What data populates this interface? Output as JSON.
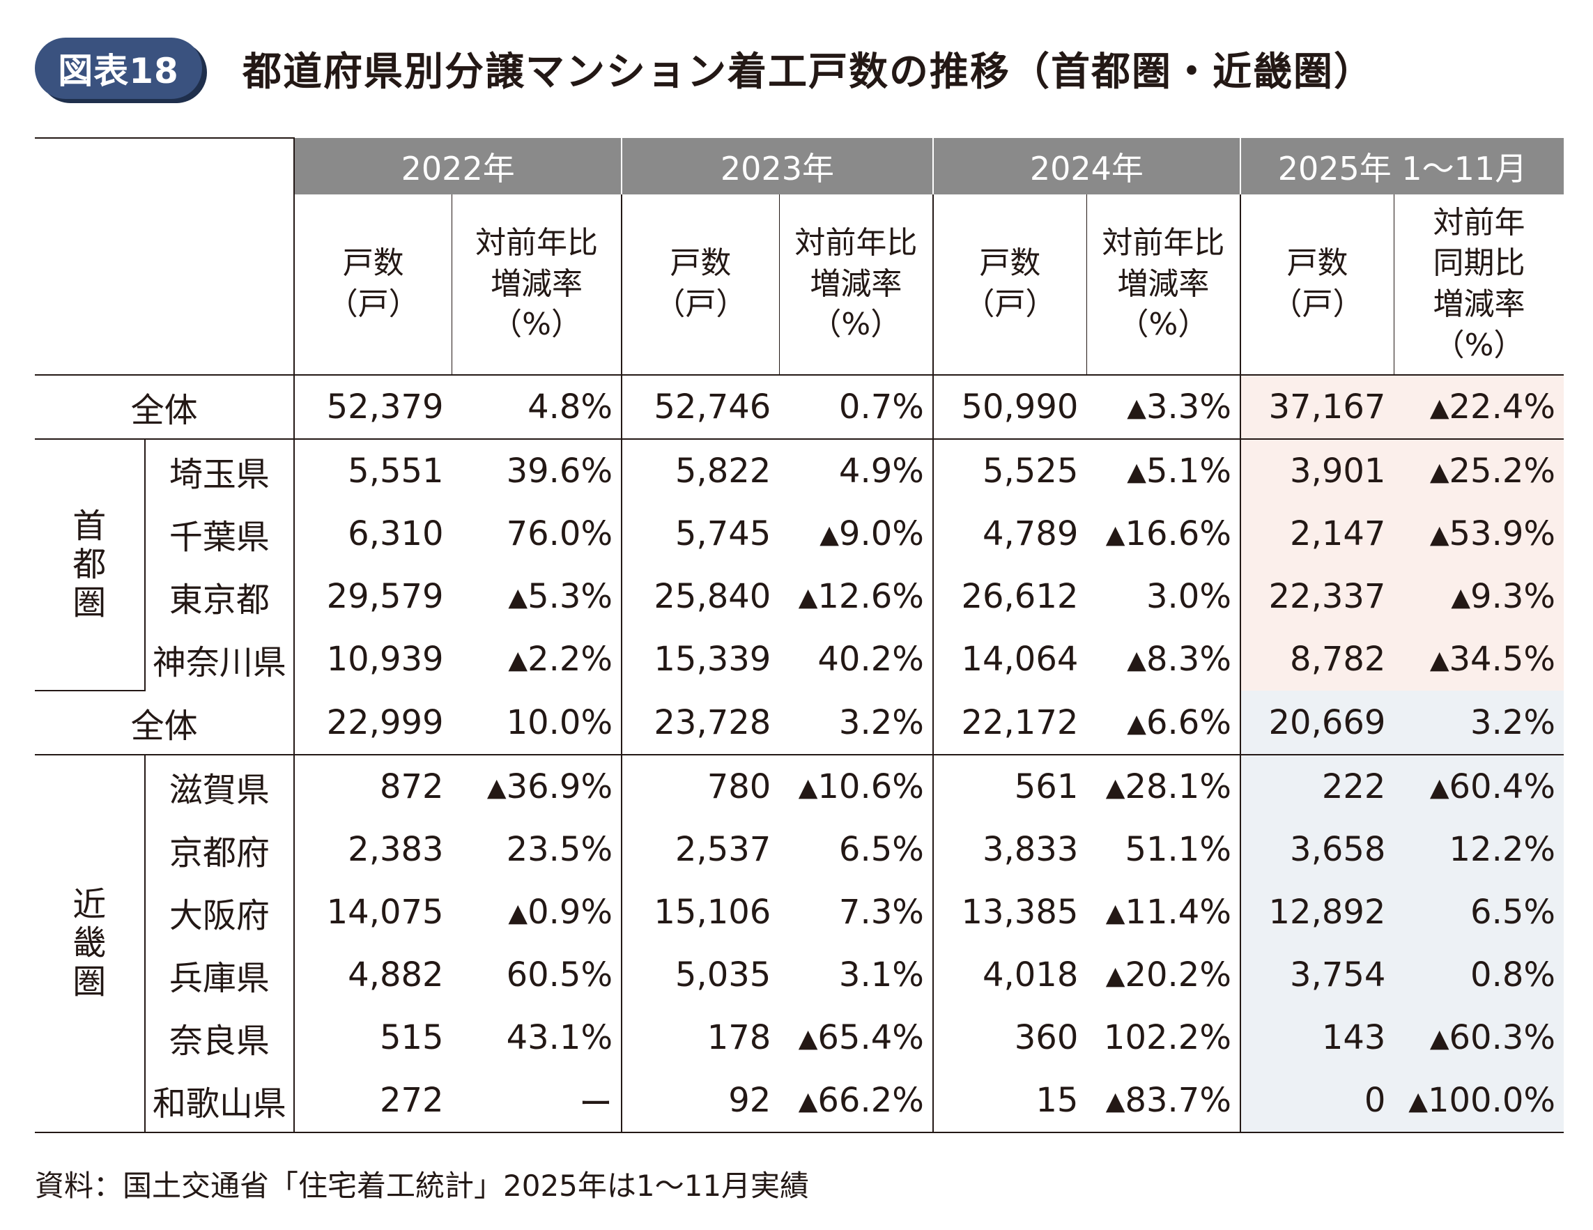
{
  "figure": {
    "badge": "図表18",
    "title": "都道府県別分譲マンション着工戸数の推移（首都圏・近畿圏）"
  },
  "table": {
    "years": [
      "2022年",
      "2023年",
      "2024年",
      "2025年 1～11月"
    ],
    "sub_headers": {
      "count": "戸数\n（戸）",
      "rate": "対前年比\n増減率\n（%）",
      "rate_last": "対前年\n同期比\n増減率\n（%）"
    },
    "regions": [
      {
        "label": "首\n都\n圏",
        "rows": [
          {
            "name": "全体",
            "cells": [
              {
                "count": "52,379",
                "tri": "",
                "val": "4.8%"
              },
              {
                "count": "52,746",
                "tri": "",
                "val": "0.7%"
              },
              {
                "count": "50,990",
                "tri": "▲",
                "val": "3.3%"
              },
              {
                "count": "37,167",
                "tri": "▲",
                "val": "22.4%"
              }
            ]
          },
          {
            "name": "埼玉県",
            "cells": [
              {
                "count": "5,551",
                "tri": "",
                "val": "39.6%"
              },
              {
                "count": "5,822",
                "tri": "",
                "val": "4.9%"
              },
              {
                "count": "5,525",
                "tri": "▲",
                "val": "5.1%"
              },
              {
                "count": "3,901",
                "tri": "▲",
                "val": "25.2%"
              }
            ]
          },
          {
            "name": "千葉県",
            "cells": [
              {
                "count": "6,310",
                "tri": "",
                "val": "76.0%"
              },
              {
                "count": "5,745",
                "tri": "▲",
                "val": "9.0%"
              },
              {
                "count": "4,789",
                "tri": "▲",
                "val": "16.6%"
              },
              {
                "count": "2,147",
                "tri": "▲",
                "val": "53.9%"
              }
            ]
          },
          {
            "name": "東京都",
            "cells": [
              {
                "count": "29,579",
                "tri": "▲",
                "val": "5.3%"
              },
              {
                "count": "25,840",
                "tri": "▲",
                "val": "12.6%"
              },
              {
                "count": "26,612",
                "tri": "",
                "val": "3.0%"
              },
              {
                "count": "22,337",
                "tri": "▲",
                "val": "9.3%"
              }
            ]
          },
          {
            "name": "神奈川県",
            "cells": [
              {
                "count": "10,939",
                "tri": "▲",
                "val": "2.2%"
              },
              {
                "count": "15,339",
                "tri": "",
                "val": "40.2%"
              },
              {
                "count": "14,064",
                "tri": "▲",
                "val": "8.3%"
              },
              {
                "count": "8,782",
                "tri": "▲",
                "val": "34.5%"
              }
            ]
          }
        ]
      },
      {
        "label": "近\n畿\n圏",
        "rows": [
          {
            "name": "全体",
            "cells": [
              {
                "count": "22,999",
                "tri": "",
                "val": "10.0%"
              },
              {
                "count": "23,728",
                "tri": "",
                "val": "3.2%"
              },
              {
                "count": "22,172",
                "tri": "▲",
                "val": "6.6%"
              },
              {
                "count": "20,669",
                "tri": "",
                "val": "3.2%"
              }
            ]
          },
          {
            "name": "滋賀県",
            "cells": [
              {
                "count": "872",
                "tri": "▲",
                "val": "36.9%"
              },
              {
                "count": "780",
                "tri": "▲",
                "val": "10.6%"
              },
              {
                "count": "561",
                "tri": "▲",
                "val": "28.1%"
              },
              {
                "count": "222",
                "tri": "▲",
                "val": "60.4%"
              }
            ]
          },
          {
            "name": "京都府",
            "cells": [
              {
                "count": "2,383",
                "tri": "",
                "val": "23.5%"
              },
              {
                "count": "2,537",
                "tri": "",
                "val": "6.5%"
              },
              {
                "count": "3,833",
                "tri": "",
                "val": "51.1%"
              },
              {
                "count": "3,658",
                "tri": "",
                "val": "12.2%"
              }
            ]
          },
          {
            "name": "大阪府",
            "cells": [
              {
                "count": "14,075",
                "tri": "▲",
                "val": "0.9%"
              },
              {
                "count": "15,106",
                "tri": "",
                "val": "7.3%"
              },
              {
                "count": "13,385",
                "tri": "▲",
                "val": "11.4%"
              },
              {
                "count": "12,892",
                "tri": "",
                "val": "6.5%"
              }
            ]
          },
          {
            "name": "兵庫県",
            "cells": [
              {
                "count": "4,882",
                "tri": "",
                "val": "60.5%"
              },
              {
                "count": "5,035",
                "tri": "",
                "val": "3.1%"
              },
              {
                "count": "4,018",
                "tri": "▲",
                "val": "20.2%"
              },
              {
                "count": "3,754",
                "tri": "",
                "val": "0.8%"
              }
            ]
          },
          {
            "name": "奈良県",
            "cells": [
              {
                "count": "515",
                "tri": "",
                "val": "43.1%"
              },
              {
                "count": "178",
                "tri": "▲",
                "val": "65.4%"
              },
              {
                "count": "360",
                "tri": "",
                "val": "102.2%"
              },
              {
                "count": "143",
                "tri": "▲",
                "val": "60.3%"
              }
            ]
          },
          {
            "name": "和歌山県",
            "cells": [
              {
                "count": "272",
                "tri": "",
                "val": "ー"
              },
              {
                "count": "92",
                "tri": "▲",
                "val": "66.2%"
              },
              {
                "count": "15",
                "tri": "▲",
                "val": "83.7%"
              },
              {
                "count": "0",
                "tri": "▲",
                "val": "100.0%"
              }
            ]
          }
        ]
      }
    ]
  },
  "note": "資料：国土交通省「住宅着工統計」2025年は1～11月実績"
}
